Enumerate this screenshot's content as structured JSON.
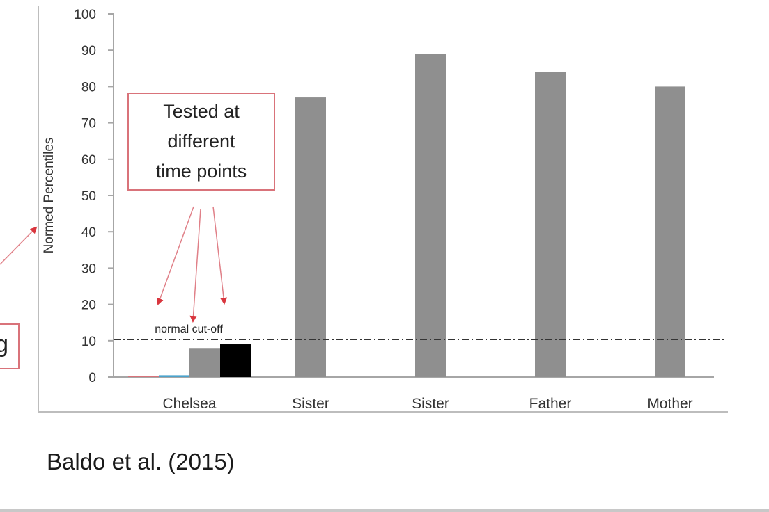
{
  "chart_data": {
    "type": "bar",
    "title": "",
    "xlabel": "",
    "ylabel": "Normed Percentiles",
    "ylim": [
      0,
      100
    ],
    "yticks": [
      0,
      10,
      20,
      30,
      40,
      50,
      60,
      70,
      80,
      90,
      100
    ],
    "categories": [
      "Chelsea",
      "Sister",
      "Sister",
      "Father",
      "Mother"
    ],
    "groups": [
      {
        "category": "Chelsea",
        "bars": [
          {
            "value": 0.2,
            "color": "#d9737a"
          },
          {
            "value": 0.5,
            "color": "#4ba3cc"
          },
          {
            "value": 8,
            "color": "#8f8f8f"
          },
          {
            "value": 9,
            "color": "#000000"
          }
        ]
      },
      {
        "category": "Sister",
        "bars": [
          {
            "value": 77,
            "color": "#8f8f8f"
          }
        ]
      },
      {
        "category": "Sister",
        "bars": [
          {
            "value": 89,
            "color": "#8f8f8f"
          }
        ]
      },
      {
        "category": "Father",
        "bars": [
          {
            "value": 84,
            "color": "#8f8f8f"
          }
        ]
      },
      {
        "category": "Mother",
        "bars": [
          {
            "value": 80,
            "color": "#8f8f8f"
          }
        ]
      }
    ],
    "reference_line": {
      "value": 10,
      "label": "normal cut-off",
      "style": "dash-dot"
    },
    "grid": false,
    "legend": null,
    "annotations": [
      {
        "text": "Tested at different time points",
        "lines": [
          "Tested at",
          "different",
          "time points"
        ],
        "style": "red-box-with-arrows"
      },
      {
        "text": "g",
        "style": "red-box-partial-left"
      }
    ]
  },
  "callout": {
    "lines": [
      "Tested at",
      "different",
      "time points"
    ]
  },
  "partial_box_text": "g",
  "cutoff_label": "normal cut-off",
  "citation": "Baldo et al. (2015)",
  "colors": {
    "annotation_red": "#d9737a",
    "bar_gray": "#8f8f8f",
    "axis": "#a6a6a6"
  }
}
